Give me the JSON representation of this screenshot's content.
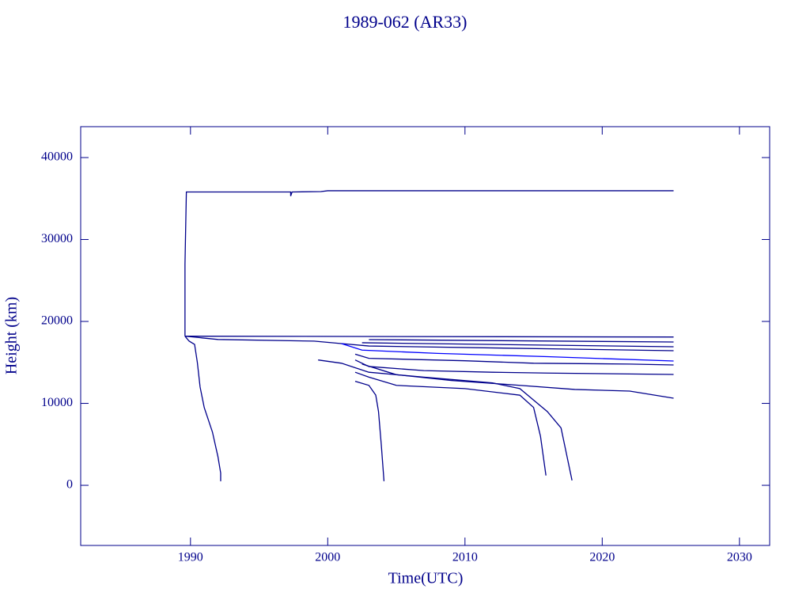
{
  "chart_data": {
    "type": "line",
    "title": "1989-062 (AR33)",
    "x_label": "Time(UTC)",
    "y_label": "Height (km)",
    "xlim": [
      1982,
      2032.2
    ],
    "ylim": [
      -7340,
      43770
    ],
    "xticks": [
      1990,
      2000,
      2010,
      2020,
      2030
    ],
    "yticks": [
      0,
      10000,
      20000,
      30000,
      40000
    ],
    "grid": false,
    "series": [
      {
        "color": "#00008b",
        "x": [
          1989.6,
          1989.6,
          1989.7,
          1997.3,
          1997.3,
          1997.4,
          1999.5,
          2000.0,
          2025.2
        ],
        "values": [
          18200,
          27000,
          35800,
          35800,
          35300,
          35800,
          35850,
          35950,
          35950
        ]
      },
      {
        "color": "#00008b",
        "x": [
          1989.6,
          1989.9,
          1990.3,
          1990.5,
          1990.7,
          1991.0,
          1991.6,
          1992.0,
          1992.2,
          1992.2
        ],
        "values": [
          18200,
          17600,
          17200,
          15000,
          12000,
          9500,
          6500,
          3500,
          1500,
          500
        ]
      },
      {
        "color": "#00008b",
        "x": [
          1989.6,
          2025.2
        ],
        "values": [
          18200,
          18100
        ]
      },
      {
        "color": "#00008b",
        "x": [
          1989.6,
          1992,
          1999,
          2001,
          2003,
          2025.2
        ],
        "values": [
          18200,
          17800,
          17600,
          17300,
          17000,
          16430
        ]
      },
      {
        "color": "#00008b",
        "x": [
          2003,
          2025.2
        ],
        "values": [
          17780,
          17490
        ]
      },
      {
        "color": "#00008b",
        "x": [
          2002.5,
          2025.2
        ],
        "values": [
          17400,
          16910
        ]
      },
      {
        "color": "#0000ff",
        "x": [
          2001,
          2002.5,
          2008,
          2016,
          2025.2
        ],
        "values": [
          17300,
          16500,
          16100,
          15700,
          15170
        ]
      },
      {
        "color": "#00008b",
        "x": [
          2002,
          2003,
          2010,
          2015,
          2022,
          2025.2
        ],
        "values": [
          16000,
          15500,
          15200,
          14900,
          14800,
          14690
        ]
      },
      {
        "color": "#00008b",
        "x": [
          2002,
          2003,
          2007,
          2012,
          2016,
          2025.2
        ],
        "values": [
          15300,
          14500,
          14000,
          13800,
          13700,
          13530
        ]
      },
      {
        "color": "#00008b",
        "x": [
          2002,
          2003,
          2003.5,
          2003.7,
          2003.9,
          2004.1
        ],
        "values": [
          12700,
          12200,
          11000,
          9000,
          5000,
          500
        ]
      },
      {
        "color": "#00008b",
        "x": [
          2002,
          2003,
          2005,
          2010,
          2014,
          2015,
          2015.5,
          2015.9
        ],
        "values": [
          13800,
          13200,
          12200,
          11800,
          11000,
          9500,
          6000,
          1200
        ]
      },
      {
        "color": "#00008b",
        "x": [
          1999.3,
          2001,
          2003,
          2007,
          2012,
          2014,
          2016,
          2017,
          2017.5,
          2017.8
        ],
        "values": [
          15300,
          14900,
          13800,
          13200,
          12500,
          11800,
          9000,
          7000,
          3000,
          600
        ]
      },
      {
        "color": "#00008b",
        "x": [
          2002.5,
          2005,
          2009,
          2014,
          2018,
          2022,
          2025.2
        ],
        "values": [
          14800,
          13500,
          12800,
          12200,
          11700,
          11500,
          10630
        ]
      }
    ]
  }
}
